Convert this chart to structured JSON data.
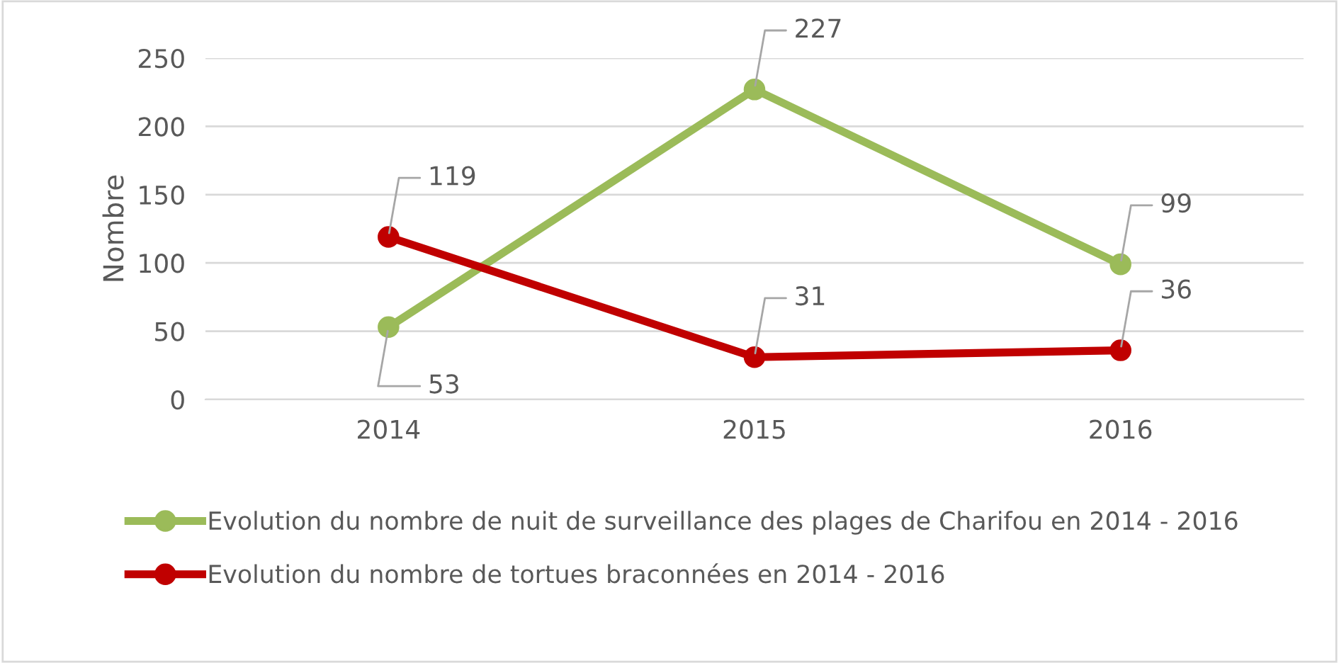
{
  "chart_data": {
    "type": "line",
    "ylabel": "Nombre",
    "categories": [
      "2014",
      "2015",
      "2016"
    ],
    "series": [
      {
        "name": "Evolution du nombre de nuit de surveillance des plages de Charifou en 2014 - 2016",
        "color": "#9bbb59",
        "values": [
          53,
          227,
          99
        ]
      },
      {
        "name": "Evolution du nombre de tortues braconnées en 2014 - 2016",
        "color": "#c00000",
        "values": [
          119,
          31,
          36
        ]
      }
    ],
    "ylim": [
      0,
      250
    ],
    "yticks": [
      0,
      50,
      100,
      150,
      200,
      250
    ],
    "grid": "y",
    "legend": "bottom",
    "marker": "circle",
    "line_style": "solid",
    "data_labels": true
  }
}
